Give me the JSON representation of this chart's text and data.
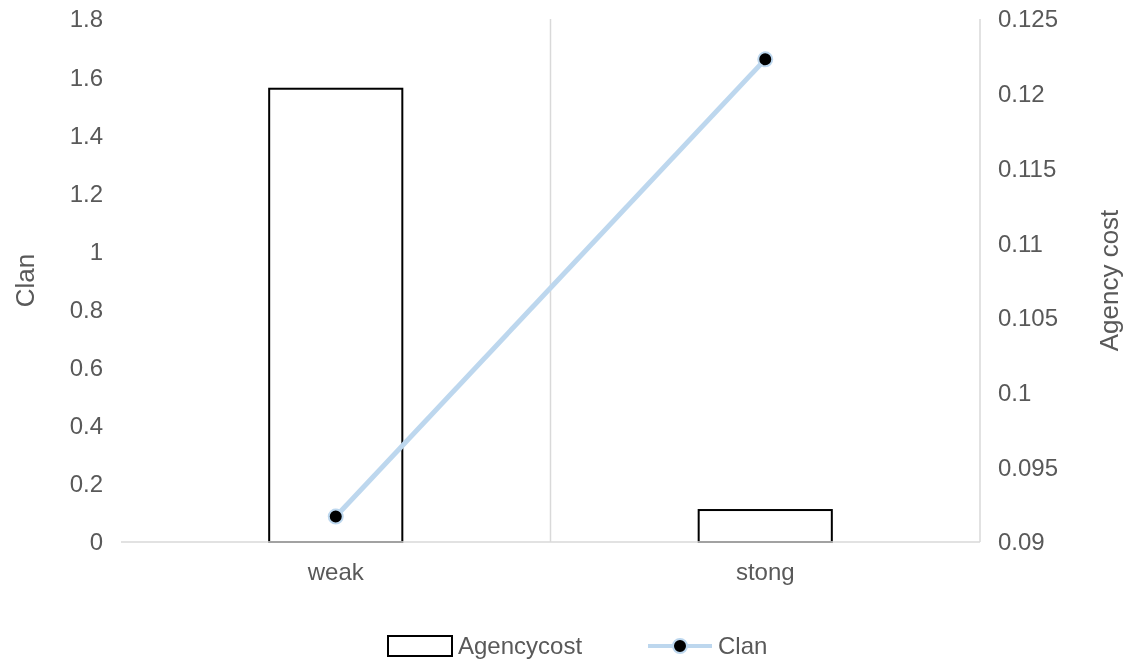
{
  "chart_data": {
    "type": "bar",
    "categories": [
      "weak",
      "stong"
    ],
    "ylabel": "Clan",
    "y2label": "Agency cost",
    "ylim": [
      0,
      1.8
    ],
    "yticks": [
      0,
      0.2,
      0.4,
      0.6,
      0.8,
      1,
      1.2,
      1.4,
      1.6,
      1.8
    ],
    "y2lim": [
      0.09,
      0.125
    ],
    "y2ticks": [
      0.09,
      0.095,
      0.1,
      0.105,
      0.11,
      0.115,
      0.12,
      0.125
    ],
    "series": [
      {
        "name": "Agencycost",
        "color": "#ffffff",
        "values": [
          1.56,
          0.11
        ]
      },
      {
        "name": "Clan",
        "type": "line",
        "axis": "y2",
        "color": "#bdd7ee",
        "values": [
          0.0917,
          0.1223
        ]
      }
    ],
    "marker": "circle",
    "grid": "x",
    "legend": "bottom"
  }
}
